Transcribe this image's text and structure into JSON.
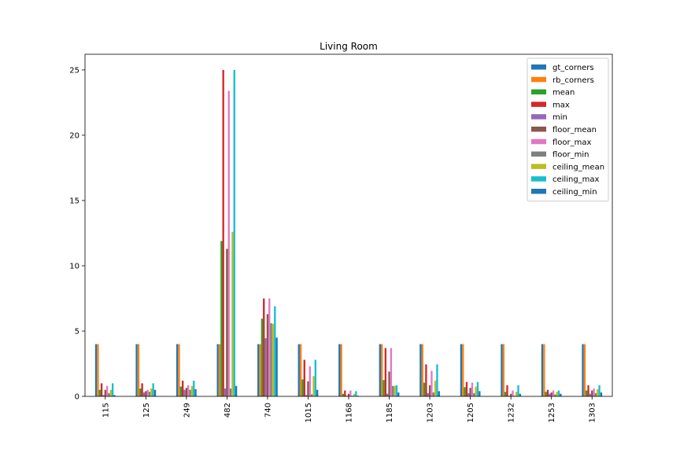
{
  "chart_data": {
    "type": "bar",
    "title": "Living Room",
    "xlabel": "",
    "ylabel": "",
    "ylim": [
      0,
      26.2
    ],
    "yticks": [
      0,
      5,
      10,
      15,
      20,
      25
    ],
    "grid": false,
    "legend_position": "top-right",
    "categories": [
      "115",
      "125",
      "249",
      "482",
      "740",
      "1015",
      "1168",
      "1185",
      "1203",
      "1205",
      "1232",
      "1253",
      "1303"
    ],
    "series": [
      {
        "name": "gt_corners",
        "color": "#1f77b4",
        "values": [
          4,
          4,
          4,
          4,
          4,
          4,
          4,
          4,
          4,
          4,
          4,
          4,
          4
        ]
      },
      {
        "name": "rb_corners",
        "color": "#ff7f0e",
        "values": [
          4,
          4,
          4,
          4,
          4,
          4,
          4,
          4,
          4,
          4,
          4,
          4,
          4
        ]
      },
      {
        "name": "mean",
        "color": "#2ca02c",
        "values": [
          0.5,
          0.6,
          0.75,
          11.9,
          5.95,
          1.3,
          0.2,
          1.25,
          1.05,
          0.7,
          0.35,
          0.35,
          0.45
        ]
      },
      {
        "name": "max",
        "color": "#d62728",
        "values": [
          1.0,
          1.0,
          1.2,
          25.0,
          7.5,
          2.8,
          0.45,
          3.7,
          2.45,
          1.1,
          0.85,
          0.5,
          0.85
        ]
      },
      {
        "name": "min",
        "color": "#9467bd",
        "values": [
          0.1,
          0.3,
          0.5,
          0.6,
          4.45,
          0.1,
          0.05,
          0.2,
          0.25,
          0.25,
          0.05,
          0.2,
          0.2
        ]
      },
      {
        "name": "floor_mean",
        "color": "#8c564b",
        "values": [
          0.5,
          0.4,
          0.65,
          11.3,
          6.3,
          1.15,
          0.2,
          1.9,
          0.85,
          0.65,
          0.2,
          0.3,
          0.45
        ]
      },
      {
        "name": "floor_max",
        "color": "#e377c2",
        "values": [
          0.8,
          0.5,
          0.85,
          23.4,
          7.5,
          2.3,
          0.45,
          3.7,
          1.95,
          1.05,
          0.45,
          0.45,
          0.6
        ]
      },
      {
        "name": "floor_min",
        "color": "#7f7f7f",
        "values": [
          0.25,
          0.35,
          0.5,
          0.6,
          5.6,
          0.15,
          0.05,
          0.8,
          0.3,
          0.25,
          0.05,
          0.15,
          0.25
        ]
      },
      {
        "name": "ceiling_mean",
        "color": "#bcbd22",
        "values": [
          0.5,
          0.6,
          0.8,
          12.6,
          5.55,
          1.55,
          0.2,
          0.8,
          1.2,
          0.75,
          0.35,
          0.35,
          0.55
        ]
      },
      {
        "name": "ceiling_max",
        "color": "#17becf",
        "values": [
          1.0,
          1.0,
          1.2,
          25.0,
          6.9,
          2.8,
          0.4,
          0.85,
          2.45,
          1.1,
          0.85,
          0.45,
          0.85
        ]
      },
      {
        "name": "ceiling_min",
        "color": "#1f77b4",
        "values": [
          0.1,
          0.5,
          0.55,
          0.8,
          4.5,
          0.5,
          0.05,
          0.3,
          0.4,
          0.4,
          0.2,
          0.2,
          0.3
        ]
      }
    ]
  }
}
